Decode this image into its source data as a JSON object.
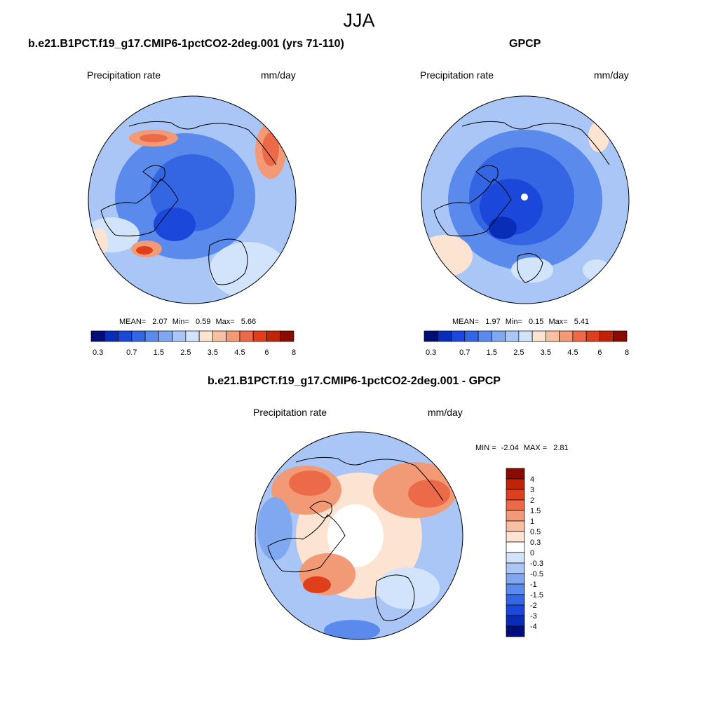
{
  "figure": {
    "season": "JJA",
    "colors": {
      "abs_scale": [
        "#000e7a",
        "#0a2db8",
        "#1b48db",
        "#3466e3",
        "#5a8aeb",
        "#7fa8f0",
        "#a9c6f6",
        "#d2e4fb",
        "#fde3d1",
        "#f8c0a2",
        "#f29a76",
        "#ec6a48",
        "#e03f1c",
        "#c02408",
        "#8a0b00"
      ],
      "diff_scale": [
        "#000e7a",
        "#0a2db8",
        "#1b48db",
        "#3466e3",
        "#5a8aeb",
        "#7fa8f0",
        "#a9c6f6",
        "#d2e4fb",
        "#ffffff",
        "#fde3d1",
        "#f8c0a2",
        "#f29a76",
        "#ec6a48",
        "#e03f1c",
        "#c02408",
        "#8a0b00"
      ]
    }
  },
  "panels": {
    "model": {
      "title": "b.e21.B1PCT.f19_g17.CMIP6-1pctCO2-2deg.001 (yrs 71-110)",
      "variable": "Precipitation rate",
      "units": "mm/day",
      "mean_label": "MEAN=",
      "mean": "2.07",
      "min_label": "Min=",
      "min": "0.59",
      "max_label": "Max=",
      "max": "5.66"
    },
    "obs": {
      "title": "GPCP",
      "variable": "Precipitation rate",
      "units": "mm/day",
      "mean_label": "MEAN=",
      "mean": "1.97",
      "min_label": "Min=",
      "min": "0.15",
      "max_label": "Max=",
      "max": "5.41"
    },
    "diff": {
      "title": "b.e21.B1PCT.f19_g17.CMIP6-1pctCO2-2deg.001 - GPCP",
      "variable": "Precipitation rate",
      "units": "mm/day",
      "min_label": "MIN =",
      "min": "-2.04",
      "max_label": "MAX =",
      "max": "2.81"
    }
  },
  "colorbars": {
    "abs_ticks": [
      "0.3",
      "0.7",
      "1.5",
      "2.5",
      "3.5",
      "4.5",
      "6",
      "8"
    ],
    "diff_ticks": [
      "4",
      "3",
      "2",
      "1.5",
      "1",
      "0.5",
      "0.3",
      "0",
      "-0.3",
      "-0.5",
      "-1",
      "-1.5",
      "-2",
      "-3",
      "-4"
    ]
  }
}
